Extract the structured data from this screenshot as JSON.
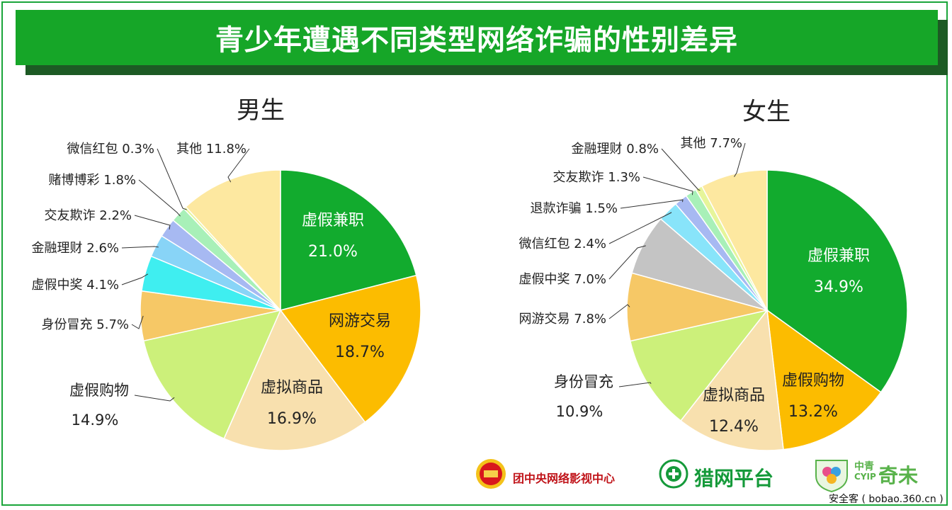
{
  "banner": {
    "title": "青少年遭遇不同类型网络诈骗的性别差异"
  },
  "chart_data": [
    {
      "type": "pie",
      "title": "男生",
      "slices": [
        {
          "label": "虚假兼职",
          "value": 21.0,
          "pct": "21.0%",
          "color": "#12ab2e",
          "style": "inside",
          "text_color": "#ffffff"
        },
        {
          "label": "网游交易",
          "value": 18.7,
          "pct": "18.7%",
          "color": "#fcbc00",
          "style": "inside",
          "text_color": "#222222"
        },
        {
          "label": "虚拟商品",
          "value": 16.9,
          "pct": "16.9%",
          "color": "#f8e0ae",
          "style": "inside",
          "text_color": "#222222"
        },
        {
          "label": "虚假购物",
          "value": 14.9,
          "pct": "14.9%",
          "color": "#ccf07a",
          "style": "outside-2line",
          "text_color": "#222222"
        },
        {
          "label": "身份冒充",
          "value": 5.7,
          "pct": "5.7%",
          "color": "#f6c866",
          "style": "outside",
          "text_color": "#222222"
        },
        {
          "label": "虚假中奖",
          "value": 4.1,
          "pct": "4.1%",
          "color": "#3feef0",
          "style": "outside",
          "text_color": "#222222"
        },
        {
          "label": "金融理财",
          "value": 2.6,
          "pct": "2.6%",
          "color": "#88d4f7",
          "style": "outside",
          "text_color": "#222222"
        },
        {
          "label": "交友欺诈",
          "value": 2.2,
          "pct": "2.2%",
          "color": "#a7b9f2",
          "style": "outside",
          "text_color": "#222222"
        },
        {
          "label": "赌博博彩",
          "value": 1.8,
          "pct": "1.8%",
          "color": "#a8f0b8",
          "style": "outside",
          "text_color": "#222222"
        },
        {
          "label": "微信红包",
          "value": 0.3,
          "pct": "0.3%",
          "color": "#e6f59a",
          "style": "outside",
          "text_color": "#222222"
        },
        {
          "label": "其他",
          "value": 11.8,
          "pct": "11.8%",
          "color": "#fde8a0",
          "style": "outside",
          "text_color": "#222222"
        }
      ]
    },
    {
      "type": "pie",
      "title": "女生",
      "slices": [
        {
          "label": "虚假兼职",
          "value": 34.9,
          "pct": "34.9%",
          "color": "#12ab2e",
          "style": "inside",
          "text_color": "#ffffff"
        },
        {
          "label": "虚假购物",
          "value": 13.2,
          "pct": "13.2%",
          "color": "#fcbc00",
          "style": "inside",
          "text_color": "#222222"
        },
        {
          "label": "虚拟商品",
          "value": 12.4,
          "pct": "12.4%",
          "color": "#f8e0ae",
          "style": "inside",
          "text_color": "#222222"
        },
        {
          "label": "身份冒充",
          "value": 10.9,
          "pct": "10.9%",
          "color": "#ccf07a",
          "style": "outside-2line",
          "text_color": "#222222"
        },
        {
          "label": "网游交易",
          "value": 7.8,
          "pct": "7.8%",
          "color": "#f6c866",
          "style": "outside",
          "text_color": "#222222"
        },
        {
          "label": "虚假中奖",
          "value": 7.0,
          "pct": "7.0%",
          "color": "#c4c4c4",
          "style": "outside",
          "text_color": "#222222"
        },
        {
          "label": "微信红包",
          "value": 2.4,
          "pct": "2.4%",
          "color": "#88e4fa",
          "style": "outside",
          "text_color": "#222222"
        },
        {
          "label": "退款诈骗",
          "value": 1.5,
          "pct": "1.5%",
          "color": "#a7b9f2",
          "style": "outside",
          "text_color": "#222222"
        },
        {
          "label": "交友欺诈",
          "value": 1.3,
          "pct": "1.3%",
          "color": "#a8f0b8",
          "style": "outside",
          "text_color": "#222222"
        },
        {
          "label": "金融理财",
          "value": 0.8,
          "pct": "0.8%",
          "color": "#e6f59a",
          "style": "outside",
          "text_color": "#222222"
        },
        {
          "label": "其他",
          "value": 7.7,
          "pct": "7.7%",
          "color": "#fde8a0",
          "style": "outside",
          "text_color": "#222222"
        }
      ]
    }
  ],
  "logos": [
    {
      "name": "团中央网络影视中心"
    },
    {
      "name": "猎网平台"
    },
    {
      "name": "中青",
      "sub": "CYIP",
      "main": "奇未"
    }
  ],
  "source": "安全客 ( bobao.360.cn )"
}
